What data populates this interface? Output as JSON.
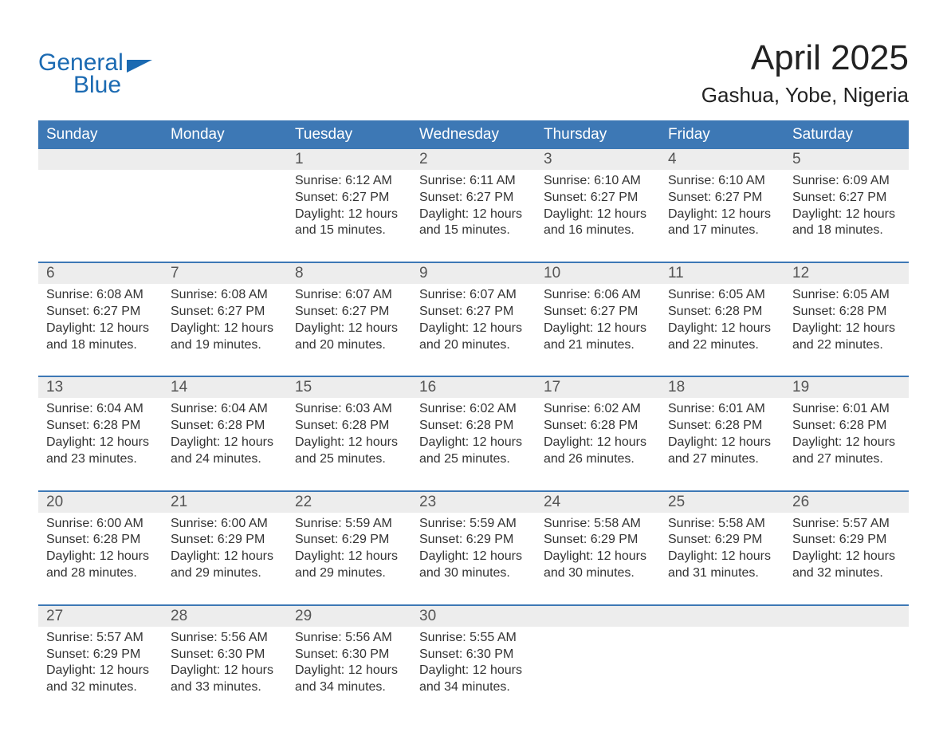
{
  "logo": {
    "general": "General",
    "blue": "Blue"
  },
  "title": "April 2025",
  "subtitle": "Gashua, Yobe, Nigeria",
  "colors": {
    "header_bg": "#3d78b5",
    "header_text": "#ffffff",
    "daynum_bg": "#ededed",
    "daynum_text": "#555555",
    "body_text": "#333333",
    "accent": "#1b6ab2",
    "page_bg": "#ffffff"
  },
  "typography": {
    "title_fontsize": 44,
    "subtitle_fontsize": 26,
    "weekday_fontsize": 19,
    "daynum_fontsize": 19,
    "body_fontsize": 16,
    "logo_fontsize": 30
  },
  "layout": {
    "columns": 7,
    "rows": 5,
    "week_divider_color": "#3d78b5",
    "week_divider_width": 2
  },
  "weekdays": [
    "Sunday",
    "Monday",
    "Tuesday",
    "Wednesday",
    "Thursday",
    "Friday",
    "Saturday"
  ],
  "weeks": [
    [
      {
        "n": "",
        "sunrise": "",
        "sunset": "",
        "daylight1": "",
        "daylight2": ""
      },
      {
        "n": "",
        "sunrise": "",
        "sunset": "",
        "daylight1": "",
        "daylight2": ""
      },
      {
        "n": "1",
        "sunrise": "Sunrise: 6:12 AM",
        "sunset": "Sunset: 6:27 PM",
        "daylight1": "Daylight: 12 hours",
        "daylight2": "and 15 minutes."
      },
      {
        "n": "2",
        "sunrise": "Sunrise: 6:11 AM",
        "sunset": "Sunset: 6:27 PM",
        "daylight1": "Daylight: 12 hours",
        "daylight2": "and 15 minutes."
      },
      {
        "n": "3",
        "sunrise": "Sunrise: 6:10 AM",
        "sunset": "Sunset: 6:27 PM",
        "daylight1": "Daylight: 12 hours",
        "daylight2": "and 16 minutes."
      },
      {
        "n": "4",
        "sunrise": "Sunrise: 6:10 AM",
        "sunset": "Sunset: 6:27 PM",
        "daylight1": "Daylight: 12 hours",
        "daylight2": "and 17 minutes."
      },
      {
        "n": "5",
        "sunrise": "Sunrise: 6:09 AM",
        "sunset": "Sunset: 6:27 PM",
        "daylight1": "Daylight: 12 hours",
        "daylight2": "and 18 minutes."
      }
    ],
    [
      {
        "n": "6",
        "sunrise": "Sunrise: 6:08 AM",
        "sunset": "Sunset: 6:27 PM",
        "daylight1": "Daylight: 12 hours",
        "daylight2": "and 18 minutes."
      },
      {
        "n": "7",
        "sunrise": "Sunrise: 6:08 AM",
        "sunset": "Sunset: 6:27 PM",
        "daylight1": "Daylight: 12 hours",
        "daylight2": "and 19 minutes."
      },
      {
        "n": "8",
        "sunrise": "Sunrise: 6:07 AM",
        "sunset": "Sunset: 6:27 PM",
        "daylight1": "Daylight: 12 hours",
        "daylight2": "and 20 minutes."
      },
      {
        "n": "9",
        "sunrise": "Sunrise: 6:07 AM",
        "sunset": "Sunset: 6:27 PM",
        "daylight1": "Daylight: 12 hours",
        "daylight2": "and 20 minutes."
      },
      {
        "n": "10",
        "sunrise": "Sunrise: 6:06 AM",
        "sunset": "Sunset: 6:27 PM",
        "daylight1": "Daylight: 12 hours",
        "daylight2": "and 21 minutes."
      },
      {
        "n": "11",
        "sunrise": "Sunrise: 6:05 AM",
        "sunset": "Sunset: 6:28 PM",
        "daylight1": "Daylight: 12 hours",
        "daylight2": "and 22 minutes."
      },
      {
        "n": "12",
        "sunrise": "Sunrise: 6:05 AM",
        "sunset": "Sunset: 6:28 PM",
        "daylight1": "Daylight: 12 hours",
        "daylight2": "and 22 minutes."
      }
    ],
    [
      {
        "n": "13",
        "sunrise": "Sunrise: 6:04 AM",
        "sunset": "Sunset: 6:28 PM",
        "daylight1": "Daylight: 12 hours",
        "daylight2": "and 23 minutes."
      },
      {
        "n": "14",
        "sunrise": "Sunrise: 6:04 AM",
        "sunset": "Sunset: 6:28 PM",
        "daylight1": "Daylight: 12 hours",
        "daylight2": "and 24 minutes."
      },
      {
        "n": "15",
        "sunrise": "Sunrise: 6:03 AM",
        "sunset": "Sunset: 6:28 PM",
        "daylight1": "Daylight: 12 hours",
        "daylight2": "and 25 minutes."
      },
      {
        "n": "16",
        "sunrise": "Sunrise: 6:02 AM",
        "sunset": "Sunset: 6:28 PM",
        "daylight1": "Daylight: 12 hours",
        "daylight2": "and 25 minutes."
      },
      {
        "n": "17",
        "sunrise": "Sunrise: 6:02 AM",
        "sunset": "Sunset: 6:28 PM",
        "daylight1": "Daylight: 12 hours",
        "daylight2": "and 26 minutes."
      },
      {
        "n": "18",
        "sunrise": "Sunrise: 6:01 AM",
        "sunset": "Sunset: 6:28 PM",
        "daylight1": "Daylight: 12 hours",
        "daylight2": "and 27 minutes."
      },
      {
        "n": "19",
        "sunrise": "Sunrise: 6:01 AM",
        "sunset": "Sunset: 6:28 PM",
        "daylight1": "Daylight: 12 hours",
        "daylight2": "and 27 minutes."
      }
    ],
    [
      {
        "n": "20",
        "sunrise": "Sunrise: 6:00 AM",
        "sunset": "Sunset: 6:28 PM",
        "daylight1": "Daylight: 12 hours",
        "daylight2": "and 28 minutes."
      },
      {
        "n": "21",
        "sunrise": "Sunrise: 6:00 AM",
        "sunset": "Sunset: 6:29 PM",
        "daylight1": "Daylight: 12 hours",
        "daylight2": "and 29 minutes."
      },
      {
        "n": "22",
        "sunrise": "Sunrise: 5:59 AM",
        "sunset": "Sunset: 6:29 PM",
        "daylight1": "Daylight: 12 hours",
        "daylight2": "and 29 minutes."
      },
      {
        "n": "23",
        "sunrise": "Sunrise: 5:59 AM",
        "sunset": "Sunset: 6:29 PM",
        "daylight1": "Daylight: 12 hours",
        "daylight2": "and 30 minutes."
      },
      {
        "n": "24",
        "sunrise": "Sunrise: 5:58 AM",
        "sunset": "Sunset: 6:29 PM",
        "daylight1": "Daylight: 12 hours",
        "daylight2": "and 30 minutes."
      },
      {
        "n": "25",
        "sunrise": "Sunrise: 5:58 AM",
        "sunset": "Sunset: 6:29 PM",
        "daylight1": "Daylight: 12 hours",
        "daylight2": "and 31 minutes."
      },
      {
        "n": "26",
        "sunrise": "Sunrise: 5:57 AM",
        "sunset": "Sunset: 6:29 PM",
        "daylight1": "Daylight: 12 hours",
        "daylight2": "and 32 minutes."
      }
    ],
    [
      {
        "n": "27",
        "sunrise": "Sunrise: 5:57 AM",
        "sunset": "Sunset: 6:29 PM",
        "daylight1": "Daylight: 12 hours",
        "daylight2": "and 32 minutes."
      },
      {
        "n": "28",
        "sunrise": "Sunrise: 5:56 AM",
        "sunset": "Sunset: 6:30 PM",
        "daylight1": "Daylight: 12 hours",
        "daylight2": "and 33 minutes."
      },
      {
        "n": "29",
        "sunrise": "Sunrise: 5:56 AM",
        "sunset": "Sunset: 6:30 PM",
        "daylight1": "Daylight: 12 hours",
        "daylight2": "and 34 minutes."
      },
      {
        "n": "30",
        "sunrise": "Sunrise: 5:55 AM",
        "sunset": "Sunset: 6:30 PM",
        "daylight1": "Daylight: 12 hours",
        "daylight2": "and 34 minutes."
      },
      {
        "n": "",
        "sunrise": "",
        "sunset": "",
        "daylight1": "",
        "daylight2": ""
      },
      {
        "n": "",
        "sunrise": "",
        "sunset": "",
        "daylight1": "",
        "daylight2": ""
      },
      {
        "n": "",
        "sunrise": "",
        "sunset": "",
        "daylight1": "",
        "daylight2": ""
      }
    ]
  ]
}
